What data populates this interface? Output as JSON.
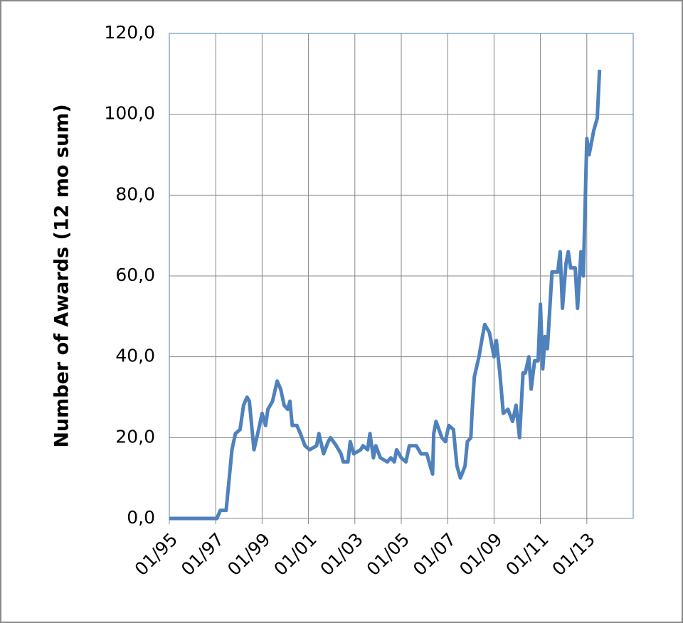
{
  "chart_data": {
    "type": "line",
    "y_label": "Number of Awards (12 mo sum)",
    "x": [
      1995.0,
      1996.0,
      1997.05,
      1997.2,
      1997.45,
      1997.55,
      1997.7,
      1997.85,
      1998.05,
      1998.2,
      1998.35,
      1998.45,
      1998.65,
      1998.85,
      1999.0,
      1999.15,
      1999.25,
      1999.45,
      1999.65,
      1999.8,
      1999.95,
      2000.1,
      2000.2,
      2000.3,
      2000.5,
      2000.65,
      2000.85,
      2001.05,
      2001.35,
      2001.45,
      2001.65,
      2001.85,
      2001.95,
      2002.2,
      2002.4,
      2002.5,
      2002.7,
      2002.8,
      2002.95,
      2003.25,
      2003.35,
      2003.55,
      2003.65,
      2003.8,
      2003.9,
      2004.1,
      2004.4,
      2004.55,
      2004.7,
      2004.8,
      2005.0,
      2005.2,
      2005.35,
      2005.65,
      2005.85,
      2006.1,
      2006.2,
      2006.35,
      2006.4,
      2006.5,
      2006.75,
      2006.9,
      2007.05,
      2007.25,
      2007.4,
      2007.55,
      2007.75,
      2007.85,
      2008.0,
      2008.05,
      2008.15,
      2008.35,
      2008.5,
      2008.6,
      2008.8,
      2009.0,
      2009.1,
      2009.25,
      2009.4,
      2009.6,
      2009.8,
      2009.95,
      2010.1,
      2010.25,
      2010.35,
      2010.5,
      2010.6,
      2010.75,
      2010.9,
      2011.0,
      2011.1,
      2011.2,
      2011.3,
      2011.5,
      2011.75,
      2011.85,
      2011.95,
      2012.1,
      2012.2,
      2012.3,
      2012.5,
      2012.6,
      2012.75,
      2012.85,
      2013.0,
      2013.1,
      2013.3,
      2013.45,
      2013.55
    ],
    "series": [
      {
        "color": "#4f81bd",
        "values": [
          0,
          0,
          0,
          2,
          2,
          8,
          17,
          21,
          22,
          28,
          30,
          29,
          17,
          22,
          26,
          23,
          27,
          29,
          34,
          32,
          28,
          27,
          29,
          23,
          23,
          21,
          18,
          17,
          18,
          21,
          16,
          19,
          20,
          18,
          16,
          14,
          14,
          19,
          16,
          17,
          18,
          17,
          21,
          15,
          18,
          15,
          14,
          15,
          14,
          17,
          15,
          14,
          18,
          18,
          16,
          16,
          14,
          11,
          21,
          24,
          20,
          19,
          23,
          22,
          13,
          10,
          13,
          19,
          20,
          26,
          35,
          40,
          45,
          48,
          46,
          40,
          44,
          36,
          26,
          27,
          24,
          28,
          20,
          36,
          36,
          40,
          32,
          39,
          39,
          53,
          37,
          45,
          42,
          61,
          61,
          66,
          52,
          63,
          66,
          62,
          62,
          52,
          66,
          60,
          94,
          90,
          96,
          99,
          111
        ]
      }
    ],
    "xlim": [
      1995,
      2015
    ],
    "xticks": [
      {
        "value": 1995,
        "label": "01/95"
      },
      {
        "value": 1997,
        "label": "01/97"
      },
      {
        "value": 1999,
        "label": "01/99"
      },
      {
        "value": 2001,
        "label": "01/01"
      },
      {
        "value": 2003,
        "label": "01/03"
      },
      {
        "value": 2005,
        "label": "01/05"
      },
      {
        "value": 2007,
        "label": "01/07"
      },
      {
        "value": 2009,
        "label": "01/09"
      },
      {
        "value": 2011,
        "label": "01/11"
      },
      {
        "value": 2013,
        "label": "01/13"
      }
    ],
    "ylim": [
      0,
      120
    ],
    "yticks": [
      {
        "value": 0,
        "label": "0,0"
      },
      {
        "value": 20,
        "label": "20,0"
      },
      {
        "value": 40,
        "label": "40,0"
      },
      {
        "value": 60,
        "label": "60,0"
      },
      {
        "value": 80,
        "label": "80,0"
      },
      {
        "value": 100,
        "label": "100,0"
      },
      {
        "value": 120,
        "label": "120,0"
      }
    ],
    "grid": true
  }
}
